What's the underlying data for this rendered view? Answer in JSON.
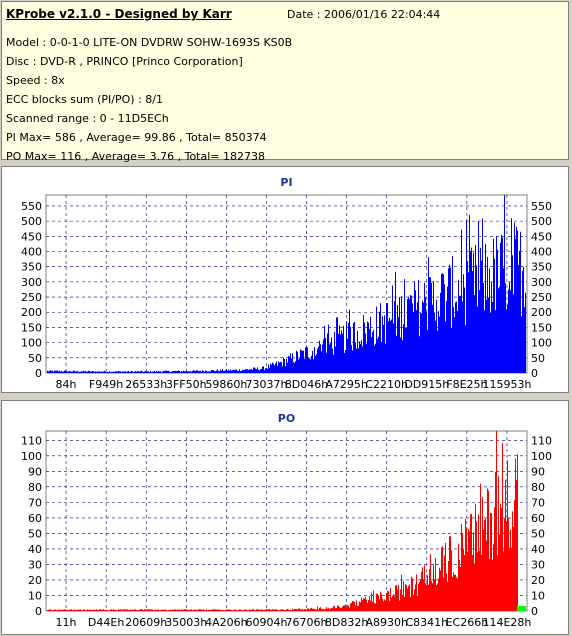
{
  "header": {
    "title": "KProbe v2.1.0 - Designed by Karr",
    "date": "Date : 2006/01/16 22:04:44",
    "lines": [
      "Model : 0-0-1-0 LITE-ON DVDRW SOHW-1693S KS0B",
      "Disc : DVD-R , PRINCO [Princo Corporation]",
      "Speed : 8x",
      "ECC blocks sum (PI/PO) : 8/1",
      "Scanned range : 0 - 11D5ECh",
      "PI Max= 586 , Average= 99.86 , Total= 850374",
      "PO Max= 116 , Average= 3.76 , Total= 182738"
    ]
  },
  "colors": {
    "pi": "#0000ff",
    "po": "#ff0000",
    "po_marker": "#00ff00",
    "grid": "#000080"
  },
  "chart_data": [
    {
      "type": "bar",
      "title": "PI",
      "ylim": [
        0,
        586
      ],
      "yticks": [
        0,
        50,
        100,
        150,
        200,
        250,
        300,
        350,
        400,
        450,
        500,
        550
      ],
      "xtick_labels": [
        "84h",
        "F949h",
        "26533h",
        "3FF50h",
        "59860h",
        "73037h",
        "8D046h",
        "A7295h",
        "C2210h",
        "DD915h",
        "F8E25h",
        "115953h"
      ],
      "envelope": [
        {
          "x": 0.0,
          "y": 8
        },
        {
          "x": 0.1,
          "y": 6
        },
        {
          "x": 0.2,
          "y": 6
        },
        {
          "x": 0.3,
          "y": 8
        },
        {
          "x": 0.4,
          "y": 12
        },
        {
          "x": 0.45,
          "y": 18
        },
        {
          "x": 0.48,
          "y": 35
        },
        {
          "x": 0.52,
          "y": 65
        },
        {
          "x": 0.56,
          "y": 95
        },
        {
          "x": 0.6,
          "y": 125
        },
        {
          "x": 0.65,
          "y": 160
        },
        {
          "x": 0.7,
          "y": 200
        },
        {
          "x": 0.75,
          "y": 245
        },
        {
          "x": 0.8,
          "y": 285
        },
        {
          "x": 0.85,
          "y": 325
        },
        {
          "x": 0.9,
          "y": 365
        },
        {
          "x": 0.95,
          "y": 400
        },
        {
          "x": 0.98,
          "y": 425
        },
        {
          "x": 1.0,
          "y": 400
        }
      ],
      "max": 586
    },
    {
      "type": "bar",
      "title": "PO",
      "ylim": [
        0,
        116
      ],
      "yticks": [
        0,
        10,
        20,
        30,
        40,
        50,
        60,
        70,
        80,
        90,
        100,
        110
      ],
      "xtick_labels": [
        "11h",
        "D44Eh",
        "20609h",
        "35003h",
        "4A206h",
        "60904h",
        "76706h",
        "8D832h",
        "A8930h",
        "C8341h",
        "EC266h",
        "114E28h"
      ],
      "envelope": [
        {
          "x": 0.0,
          "y": 1
        },
        {
          "x": 0.35,
          "y": 1
        },
        {
          "x": 0.45,
          "y": 1
        },
        {
          "x": 0.55,
          "y": 1.5
        },
        {
          "x": 0.62,
          "y": 3
        },
        {
          "x": 0.66,
          "y": 6
        },
        {
          "x": 0.7,
          "y": 10
        },
        {
          "x": 0.74,
          "y": 14
        },
        {
          "x": 0.78,
          "y": 20
        },
        {
          "x": 0.82,
          "y": 30
        },
        {
          "x": 0.86,
          "y": 42
        },
        {
          "x": 0.9,
          "y": 55
        },
        {
          "x": 0.94,
          "y": 70
        },
        {
          "x": 0.97,
          "y": 85
        },
        {
          "x": 1.0,
          "y": 95
        }
      ],
      "max": 116
    }
  ]
}
